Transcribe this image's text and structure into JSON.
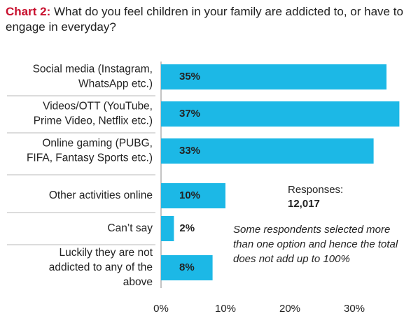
{
  "chart_data": {
    "type": "bar",
    "orientation": "horizontal",
    "title_lead": "Chart 2:",
    "title": "What do you feel children in your family are addicted to, or have to engage in everyday?",
    "categories": [
      [
        "Social media (Instagram,",
        "WhatsApp etc.)"
      ],
      [
        "Videos/OTT (YouTube,",
        "Prime Video, Netflix etc.)"
      ],
      [
        "Online gaming (PUBG,",
        "FIFA, Fantasy Sports etc.)"
      ],
      [
        "Other activities online"
      ],
      [
        "Can’t say"
      ],
      [
        "Luckily they are not",
        "addicted to any of the",
        "above"
      ]
    ],
    "values": [
      35,
      37,
      33,
      10,
      2,
      8
    ],
    "value_labels": [
      "35%",
      "37%",
      "33%",
      "10%",
      "2%",
      "8%"
    ],
    "xticks": [
      "0%",
      "10%",
      "20%",
      "30%"
    ],
    "xlim": [
      0,
      37
    ],
    "bar_color": "#1cb8e6"
  },
  "notes": {
    "responses_label": "Responses:",
    "responses_value": "12,017",
    "footnote": "Some respondents selected more than one option and hence the total does not add up to 100%"
  }
}
